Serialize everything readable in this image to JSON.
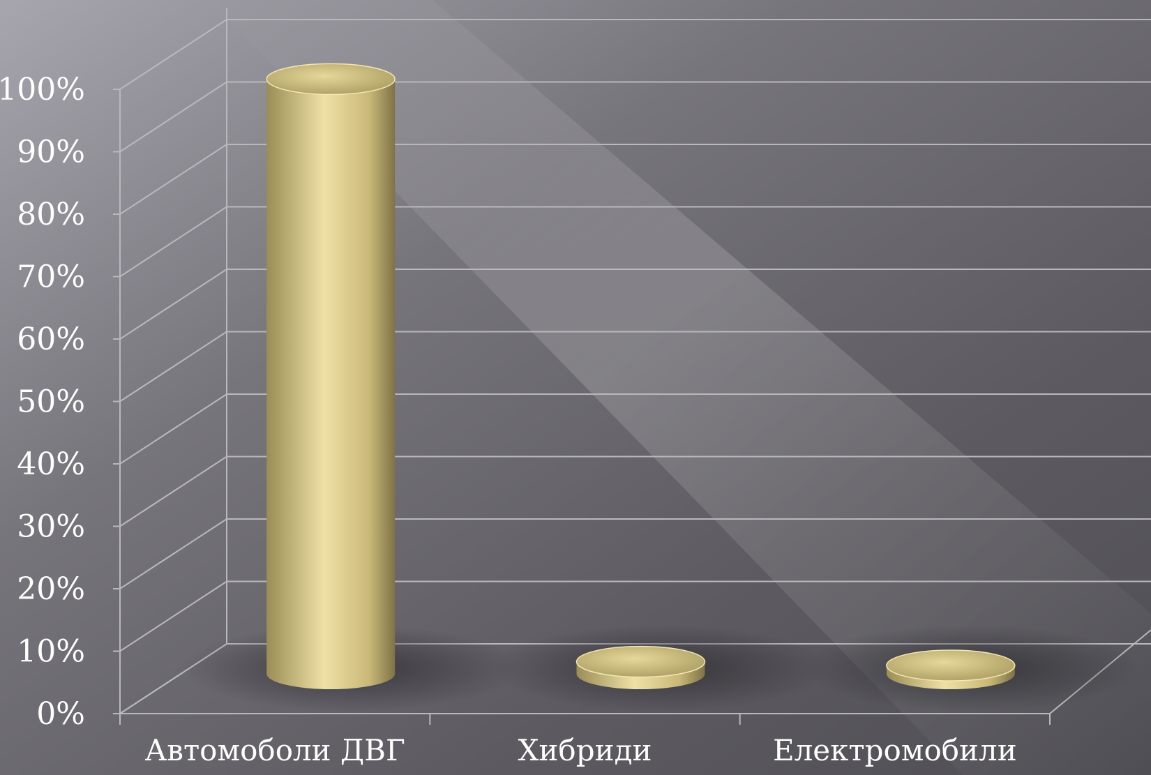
{
  "chart_data": {
    "type": "bar",
    "style": "3d-cylinder",
    "categories": [
      "Автомоболи ДВГ",
      "Хибриди",
      "Електромобили"
    ],
    "values": [
      98,
      2,
      0.5
    ],
    "ylim": [
      0,
      100
    ],
    "yticks": [
      "0%",
      "10%",
      "20%",
      "30%",
      "40%",
      "50%",
      "60%",
      "70%",
      "80%",
      "90%",
      "100%"
    ],
    "title": "",
    "xlabel": "",
    "ylabel": "",
    "grid": true,
    "legend": "none",
    "colors": {
      "bar_light": "#efe1a6",
      "bar_mid": "#c9b877",
      "bar_dark": "#7e7346",
      "background": "#5e5c62",
      "gridline": "#b9b8bd",
      "text": "#ffffff"
    }
  }
}
